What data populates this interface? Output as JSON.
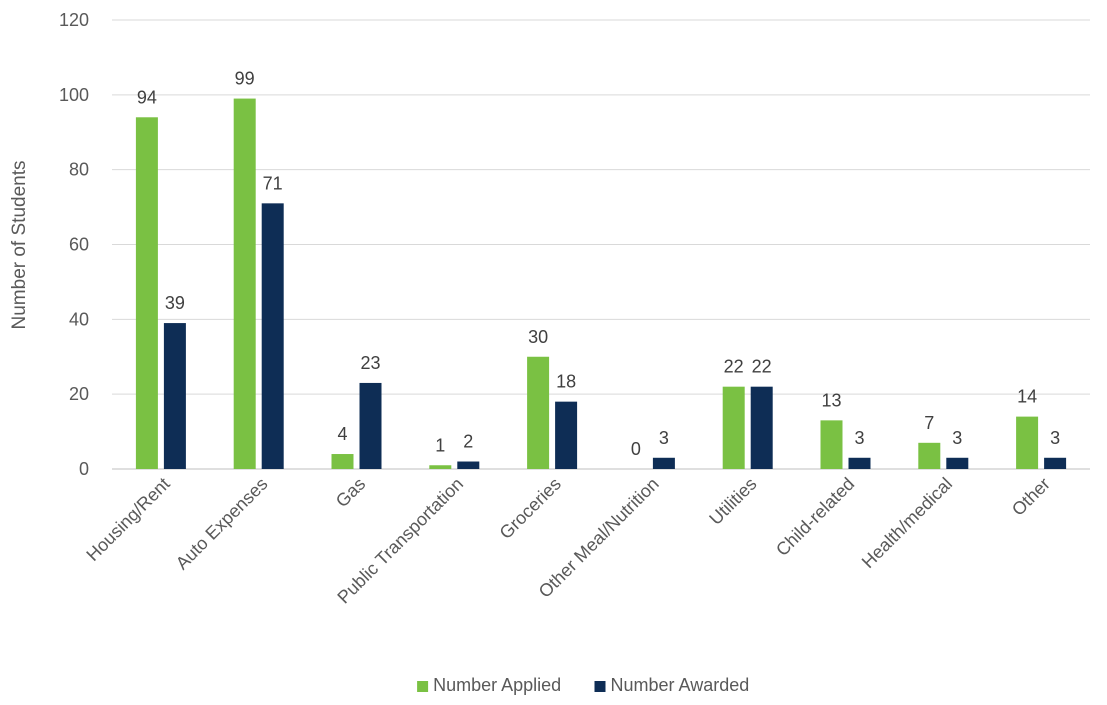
{
  "chart_data": {
    "type": "bar",
    "title": "",
    "xlabel": "",
    "ylabel": "Number of Students",
    "ylim": [
      0,
      120
    ],
    "yticks": [
      0,
      20,
      40,
      60,
      80,
      100,
      120
    ],
    "grid": true,
    "legend_position": "bottom",
    "categories": [
      "Housing/Rent",
      "Auto Expenses",
      "Gas",
      "Public Transportation",
      "Groceries",
      "Other Meal/Nutrition",
      "Utilities",
      "Child-related",
      "Health/medical",
      "Other"
    ],
    "series": [
      {
        "name": "Number Applied",
        "color": "#7AC143",
        "values": [
          94,
          99,
          4,
          1,
          30,
          0,
          22,
          13,
          7,
          14
        ]
      },
      {
        "name": "Number Awarded",
        "color": "#0E2D55",
        "values": [
          39,
          71,
          23,
          2,
          18,
          3,
          22,
          3,
          3,
          3
        ]
      }
    ],
    "colors": {
      "gridline": "#D9D9D9",
      "axis": "#BFBFBF"
    }
  }
}
